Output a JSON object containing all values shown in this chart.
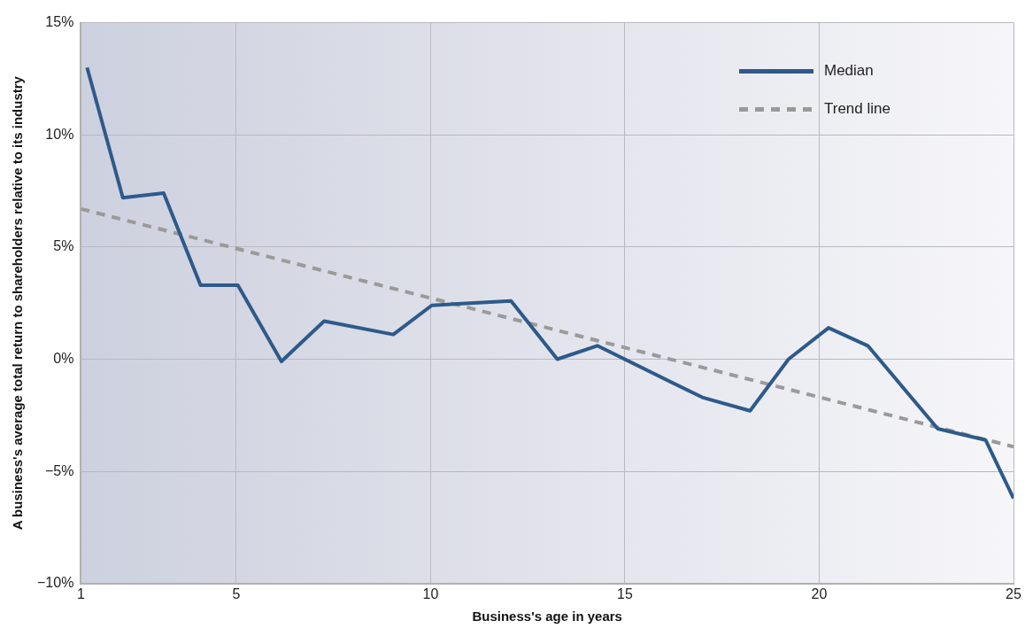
{
  "chart_data": {
    "type": "line",
    "xlabel": "Business's age in years",
    "ylabel": "A business's average total return to shareholders relative to its industry",
    "xlim": [
      1,
      25
    ],
    "xticks": [
      1,
      5,
      10,
      15,
      20,
      25
    ],
    "ylim": [
      -10,
      15
    ],
    "yticks": [
      {
        "value": -10,
        "label": "−10%"
      },
      {
        "value": -5,
        "label": "−5%"
      },
      {
        "value": 0,
        "label": "0%"
      },
      {
        "value": 5,
        "label": "5%"
      },
      {
        "value": 10,
        "label": "10%"
      },
      {
        "value": 15,
        "label": "15%"
      }
    ],
    "series": [
      {
        "name": "Median",
        "color": "#2e5a8a",
        "line_style": "solid",
        "x": [
          1.16,
          2.08,
          3.13,
          4.08,
          5.04,
          6.16,
          7.26,
          9.04,
          10.03,
          12.07,
          13.26,
          14.29,
          16.99,
          18.22,
          19.21,
          20.24,
          21.25,
          23.05,
          24.28,
          25.0
        ],
        "values": [
          13.0,
          7.2,
          7.4,
          3.3,
          3.3,
          -0.1,
          1.7,
          1.1,
          2.4,
          2.6,
          0.0,
          0.6,
          -1.7,
          -2.3,
          0.0,
          1.4,
          0.6,
          -3.1,
          -3.6,
          -6.2
        ]
      },
      {
        "name": "Trend line",
        "color": "#9a9a9a",
        "line_style": "dashed",
        "x": [
          1,
          25
        ],
        "values": [
          6.7,
          -3.9
        ]
      }
    ],
    "grid": true,
    "legend": "top right",
    "marker": "none"
  }
}
